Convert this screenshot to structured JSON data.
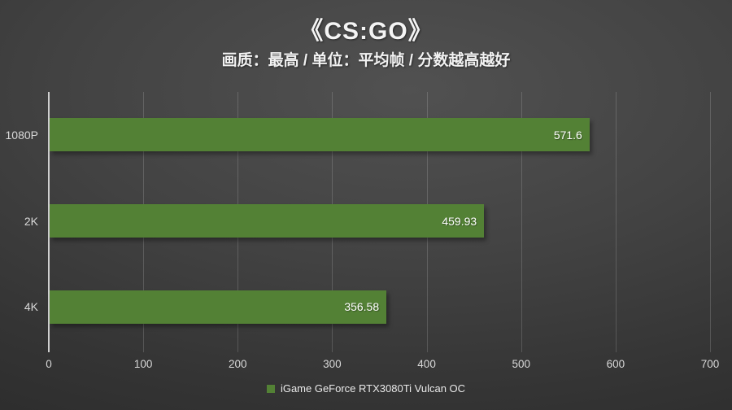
{
  "chart_data": {
    "type": "bar",
    "orientation": "horizontal",
    "title": "《CS:GO》",
    "subtitle": "画质：最高 / 单位：平均帧 / 分数越高越好",
    "categories": [
      "1080P",
      "2K",
      "4K"
    ],
    "series": [
      {
        "name": "iGame GeForce RTX3080Ti Vulcan OC",
        "color": "#538135",
        "values": [
          571.6,
          459.93,
          356.58
        ],
        "value_labels": [
          "571.6",
          "459.93",
          "356.58"
        ]
      }
    ],
    "xlim": [
      0,
      700
    ],
    "x_ticks": [
      0,
      100,
      200,
      300,
      400,
      500,
      600,
      700
    ],
    "grid": "vertical-gridlines",
    "legend_position": "bottom",
    "colors": {
      "bar": "#538135",
      "title_text": "#f2f2f2",
      "axis_text": "#d9d9d9",
      "background_dark": "#262626"
    }
  }
}
